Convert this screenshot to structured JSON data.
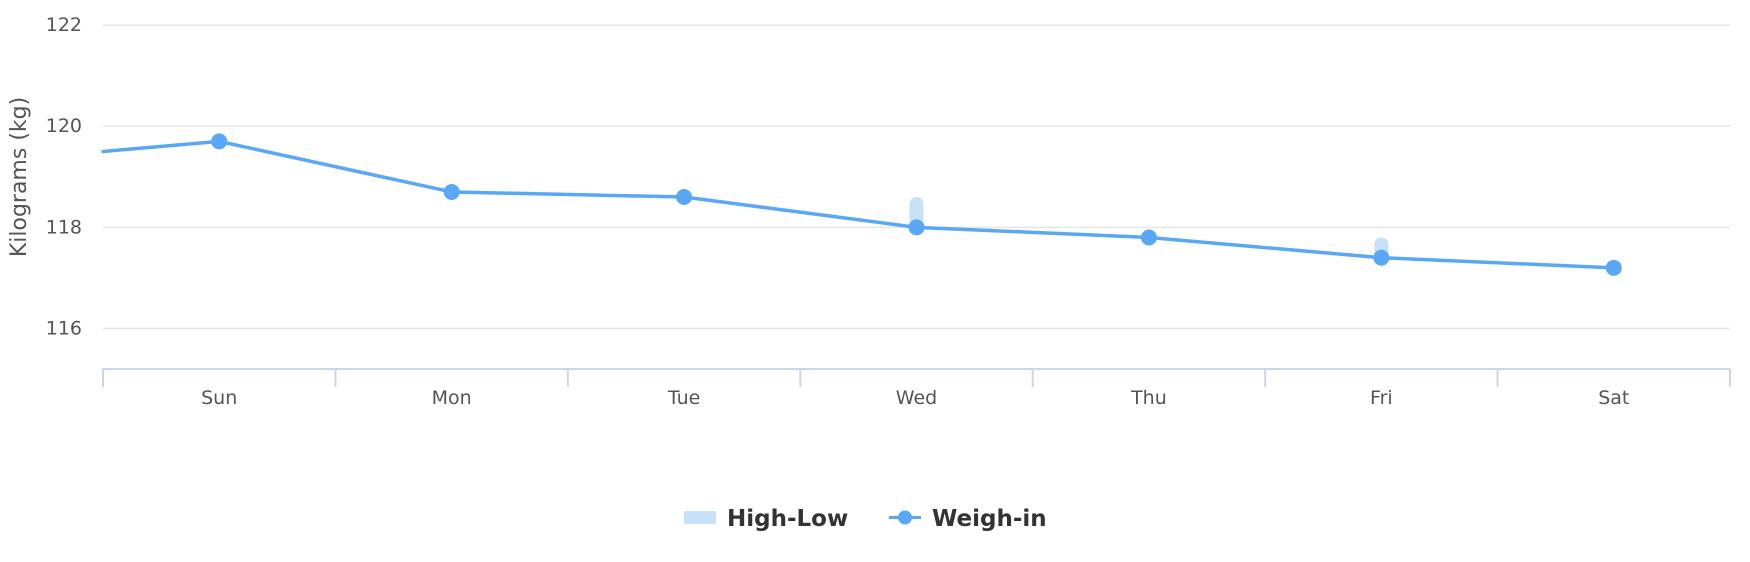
{
  "chart_data": {
    "type": "line",
    "categories": [
      "Sun",
      "Mon",
      "Tue",
      "Wed",
      "Thu",
      "Fri",
      "Sat"
    ],
    "ylabel": "Kilograms (kg)",
    "ylim": [
      115.2,
      122
    ],
    "yticks": [
      116,
      118,
      120,
      122
    ],
    "grid": true,
    "legend_position": "bottom-center",
    "series": [
      {
        "name": "Weigh-in",
        "color": "#5aa8f5",
        "lead_in": 119.5,
        "values": [
          119.7,
          118.7,
          118.6,
          118.0,
          117.8,
          117.4,
          117.2
        ]
      },
      {
        "name": "High-Low",
        "color": "#c7e1f8",
        "ranges": [
          null,
          null,
          null,
          [
            118.0,
            118.6
          ],
          null,
          [
            117.4,
            117.8
          ],
          null
        ]
      }
    ]
  }
}
